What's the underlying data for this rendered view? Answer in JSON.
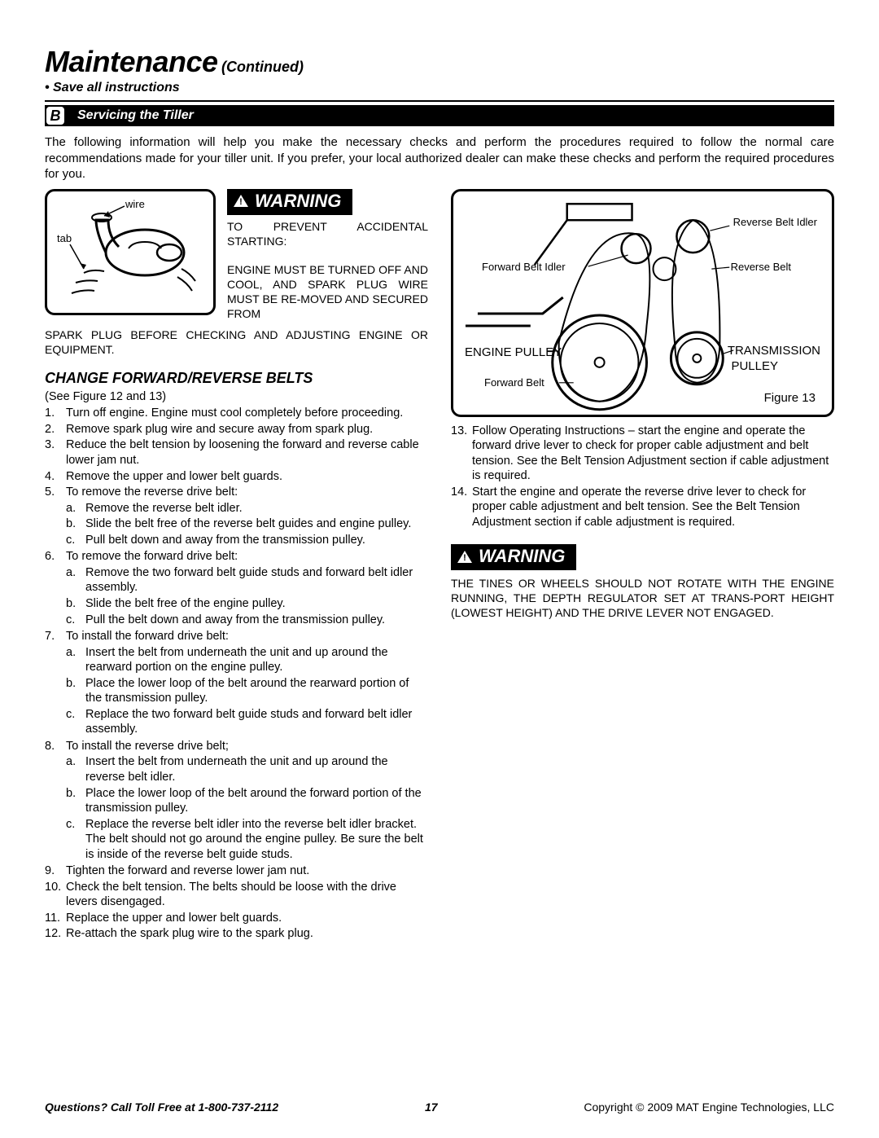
{
  "title_main": "Maintenance",
  "title_cont": "(Continued)",
  "save": "• Save all instructions",
  "section_letter": "B",
  "section_title": "Servicing the Tiller",
  "intro": "The following information will help you make the necessary checks and perform the procedures required to follow the normal care recommendations made for your tiller unit. If you prefer, your local authorized dealer can make these checks and perform the required procedures for you.",
  "warning_word": "WARNING",
  "warn1_body": "TO PREVENT ACCIDENTAL STARTING:\n\nENGINE MUST BE TURNED OFF AND COOL, AND SPARK PLUG WIRE MUST BE RE-MOVED AND SECURED FROM",
  "warn1_after": "SPARK PLUG BEFORE CHECKING AND ADJUSTING ENGINE OR EQUIPMENT.",
  "sub_heading": "CHANGE FORWARD/REVERSE BELTS",
  "see_fig": "(See Figure 12 and 13)",
  "steps_left": [
    {
      "n": "1.",
      "t": "Turn off engine. Engine must cool completely before proceeding."
    },
    {
      "n": "2.",
      "t": "Remove spark plug wire and secure away from spark plug."
    },
    {
      "n": "3.",
      "t": "Reduce the belt tension by loosening the forward and reverse cable lower jam nut."
    },
    {
      "n": "4.",
      "t": "Remove the upper and lower belt guards."
    },
    {
      "n": "5.",
      "t": "To remove the reverse drive belt:",
      "sub": [
        {
          "l": "a.",
          "t": "Remove the reverse belt idler."
        },
        {
          "l": "b.",
          "t": "Slide the belt free of the reverse belt guides and engine pulley."
        },
        {
          "l": "c.",
          "t": "Pull belt down and away from the transmission pulley."
        }
      ]
    },
    {
      "n": "6.",
      "t": "To remove the forward drive belt:",
      "sub": [
        {
          "l": "a.",
          "t": "Remove the two forward belt guide studs and forward belt idler assembly."
        },
        {
          "l": "b.",
          "t": "Slide the belt free of the engine pulley."
        },
        {
          "l": "c.",
          "t": "Pull the belt down and away from the transmission pulley."
        }
      ]
    },
    {
      "n": "7.",
      "t": "To install the forward drive belt:",
      "sub": [
        {
          "l": "a.",
          "t": "Insert the belt from underneath the unit and up around the rearward portion on the engine pulley."
        },
        {
          "l": "b.",
          "t": "Place the lower loop of the belt around the rearward portion of the transmission pulley."
        },
        {
          "l": "c.",
          "t": "Replace the two forward belt guide studs and forward belt idler assembly."
        }
      ]
    },
    {
      "n": "8.",
      "t": "To install the reverse drive belt;",
      "sub": [
        {
          "l": "a.",
          "t": "Insert the belt from underneath the unit and up around the reverse belt idler."
        },
        {
          "l": "b.",
          "t": "Place the lower loop of the belt around the forward portion of the transmission pulley."
        },
        {
          "l": "c.",
          "t": "Replace the reverse belt idler into the reverse belt idler bracket. The belt should not go around the engine pulley. Be sure the belt is inside of the reverse belt guide studs."
        }
      ]
    },
    {
      "n": "9.",
      "t": "Tighten the forward and reverse lower jam nut."
    },
    {
      "n": "10.",
      "t": "Check the belt tension. The belts should be loose with the drive levers disengaged."
    },
    {
      "n": "11.",
      "t": "Replace the upper and lower belt guards."
    },
    {
      "n": "12.",
      "t": "Re-attach the spark plug wire to the spark plug."
    }
  ],
  "steps_right": [
    {
      "n": "13.",
      "t": "Follow Operating Instructions – start the engine and operate the forward drive lever to check for proper cable adjustment and belt tension. See the Belt Tension Adjustment section if cable adjustment is required."
    },
    {
      "n": "14.",
      "t": "Start the engine and operate the reverse drive lever to check for proper cable adjustment and belt tension. See the Belt Tension Adjustment section if cable adjustment is required."
    }
  ],
  "warn2_body": "THE TINES OR WHEELS SHOULD NOT ROTATE WITH THE ENGINE RUNNING, THE DEPTH REGULATOR SET AT TRANS-PORT HEIGHT (LOWEST HEIGHT) AND THE DRIVE LEVER NOT ENGAGED.",
  "fig12": {
    "wire": "wire",
    "tab": "tab"
  },
  "fig13": {
    "reverse_belt_idler": "Reverse Belt Idler",
    "forward_belt_idler": "Forward Belt Idler",
    "reverse_belt": "Reverse Belt",
    "engine_pulley": "ENGINE PULLEY",
    "transmission_pulley_1": "TRANSMISSION",
    "transmission_pulley_2": "PULLEY",
    "forward_belt": "Forward Belt",
    "caption": "Figure 13"
  },
  "footer": {
    "q": "Questions? Call Toll Free at 1-800-737-2112",
    "page": "17",
    "copy": "Copyright © 2009 MAT Engine Technologies, LLC"
  },
  "colors": {
    "bar_bg": "#000000",
    "bar_fg": "#ffffff",
    "text": "#000000",
    "page_bg": "#ffffff"
  }
}
